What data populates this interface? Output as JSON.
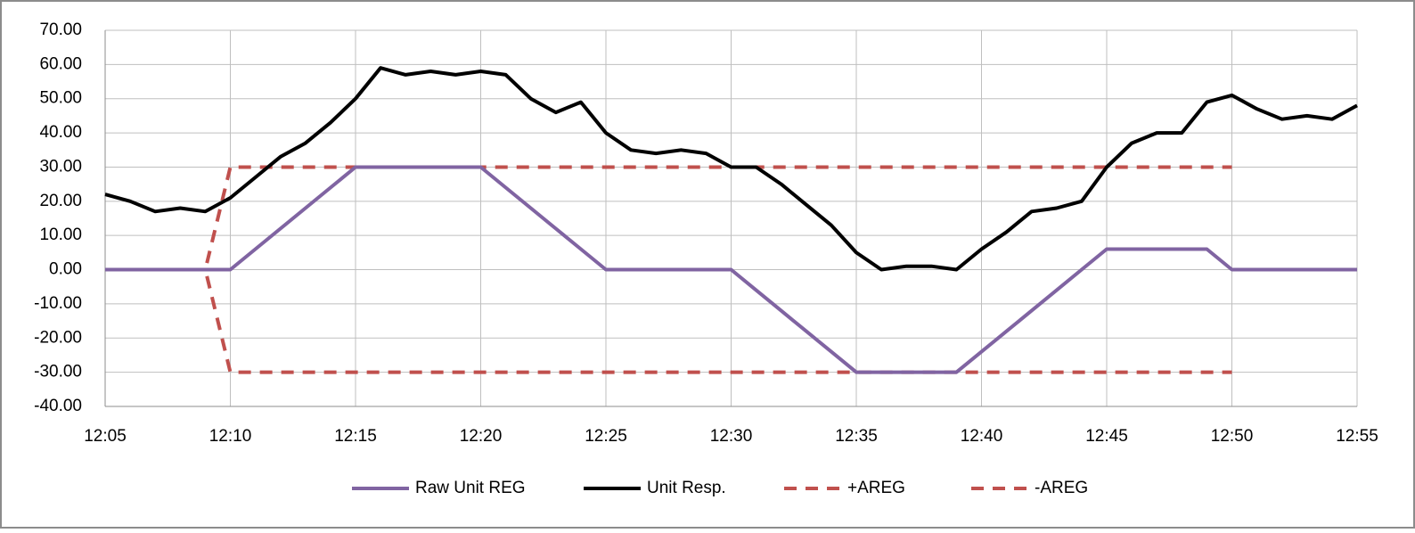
{
  "chart_data": {
    "type": "line",
    "x": [
      "12:05",
      "12:06",
      "12:07",
      "12:08",
      "12:09",
      "12:10",
      "12:11",
      "12:12",
      "12:13",
      "12:14",
      "12:15",
      "12:16",
      "12:17",
      "12:18",
      "12:19",
      "12:20",
      "12:21",
      "12:22",
      "12:23",
      "12:24",
      "12:25",
      "12:26",
      "12:27",
      "12:28",
      "12:29",
      "12:30",
      "12:31",
      "12:32",
      "12:33",
      "12:34",
      "12:35",
      "12:36",
      "12:37",
      "12:38",
      "12:39",
      "12:40",
      "12:41",
      "12:42",
      "12:43",
      "12:44",
      "12:45",
      "12:46",
      "12:47",
      "12:48",
      "12:49",
      "12:50",
      "12:51",
      "12:52",
      "12:53",
      "12:54",
      "12:55"
    ],
    "series": [
      {
        "name": "Raw Unit REG",
        "color": "#8064a2",
        "dash": false,
        "values": [
          0,
          0,
          0,
          0,
          0,
          0,
          6,
          12,
          18,
          24,
          30,
          30,
          30,
          30,
          30,
          30,
          24,
          18,
          12,
          6,
          0,
          0,
          0,
          0,
          0,
          0,
          -6,
          -12,
          -18,
          -24,
          -30,
          -30,
          -30,
          -30,
          -30,
          -24,
          -18,
          -12,
          -6,
          0,
          6,
          6,
          6,
          6,
          6,
          0,
          0,
          0,
          0,
          0,
          0
        ]
      },
      {
        "name": "Unit Resp.",
        "color": "#000000",
        "dash": false,
        "values": [
          22,
          20,
          17,
          18,
          17,
          21,
          27,
          33,
          37,
          43,
          50,
          59,
          57,
          58,
          57,
          58,
          57,
          50,
          46,
          49,
          40,
          35,
          34,
          35,
          34,
          30,
          30,
          25,
          19,
          13,
          5,
          0,
          1,
          1,
          0,
          6,
          11,
          17,
          18,
          20,
          30,
          37,
          40,
          40,
          49,
          51,
          47,
          44,
          45,
          44,
          48
        ]
      },
      {
        "name": "+AREG",
        "color": "#c0504d",
        "dash": true,
        "values": [
          0,
          0,
          0,
          0,
          0,
          30,
          30,
          30,
          30,
          30,
          30,
          30,
          30,
          30,
          30,
          30,
          30,
          30,
          30,
          30,
          30,
          30,
          30,
          30,
          30,
          30,
          30,
          30,
          30,
          30,
          30,
          30,
          30,
          30,
          30,
          30,
          30,
          30,
          30,
          30,
          30,
          30,
          30,
          30,
          30,
          30,
          null,
          null,
          null,
          null,
          null
        ]
      },
      {
        "name": "-AREG",
        "color": "#c0504d",
        "dash": true,
        "values": [
          0,
          0,
          0,
          0,
          0,
          -30,
          -30,
          -30,
          -30,
          -30,
          -30,
          -30,
          -30,
          -30,
          -30,
          -30,
          -30,
          -30,
          -30,
          -30,
          -30,
          -30,
          -30,
          -30,
          -30,
          -30,
          -30,
          -30,
          -30,
          -30,
          -30,
          -30,
          -30,
          -30,
          -30,
          -30,
          -30,
          -30,
          -30,
          -30,
          -30,
          -30,
          -30,
          -30,
          -30,
          -30,
          null,
          null,
          null,
          null,
          null
        ]
      }
    ],
    "xlim": [
      "12:05",
      "12:55"
    ],
    "xticks": [
      "12:05",
      "12:10",
      "12:15",
      "12:20",
      "12:25",
      "12:30",
      "12:35",
      "12:40",
      "12:45",
      "12:50",
      "12:55"
    ],
    "ylim": [
      -40,
      70
    ],
    "yticks": [
      {
        "value": -40,
        "label": "-40.00"
      },
      {
        "value": -30,
        "label": "-30.00"
      },
      {
        "value": -20,
        "label": "-20.00"
      },
      {
        "value": -10,
        "label": "-10.00"
      },
      {
        "value": 0,
        "label": "0.00"
      },
      {
        "value": 10,
        "label": "10.00"
      },
      {
        "value": 20,
        "label": "20.00"
      },
      {
        "value": 30,
        "label": "30.00"
      },
      {
        "value": 40,
        "label": "40.00"
      },
      {
        "value": 50,
        "label": "50.00"
      },
      {
        "value": 60,
        "label": "60.00"
      },
      {
        "value": 70,
        "label": "70.00"
      }
    ],
    "grid": true,
    "legend": "bottom"
  }
}
